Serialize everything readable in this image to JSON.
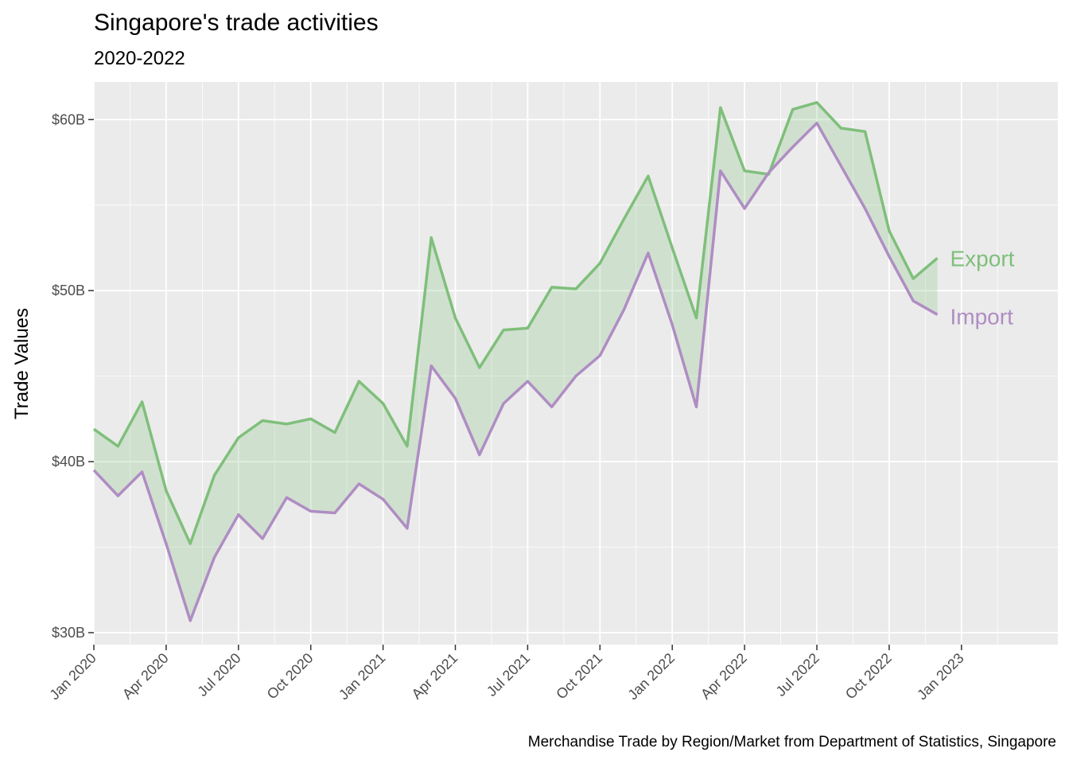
{
  "chart_data": {
    "type": "area",
    "title": "Singapore's trade activities",
    "subtitle": "2020-2022",
    "xlabel": "",
    "ylabel": "Trade Values",
    "caption": "Merchandise Trade by Region/Market from Department of Statistics, Singapore",
    "ylim": [
      "2019-12",
      "2023-01"
    ],
    "y_range": [
      29.3,
      62.2
    ],
    "yticks": [
      30,
      40,
      50,
      60
    ],
    "ytick_labels": [
      "$30B",
      "$40B",
      "$50B",
      "$60B"
    ],
    "xticks": [
      "2020-01",
      "2020-04",
      "2020-07",
      "2020-10",
      "2021-01",
      "2021-04",
      "2021-07",
      "2021-10",
      "2022-01",
      "2022-04",
      "2022-07",
      "2022-10",
      "2023-01"
    ],
    "xtick_labels": [
      "Jan 2020",
      "Apr 2020",
      "Jul 2020",
      "Oct 2020",
      "Jan 2021",
      "Apr 2021",
      "Jul 2021",
      "Oct 2021",
      "Jan 2022",
      "Apr 2022",
      "Jul 2022",
      "Oct 2022",
      "Jan 2023"
    ],
    "x_range": [
      "2020-01",
      "2023-05"
    ],
    "grid": true,
    "x": [
      "2020-01",
      "2020-02",
      "2020-03",
      "2020-04",
      "2020-05",
      "2020-06",
      "2020-07",
      "2020-08",
      "2020-09",
      "2020-10",
      "2020-11",
      "2020-12",
      "2021-01",
      "2021-02",
      "2021-03",
      "2021-04",
      "2021-05",
      "2021-06",
      "2021-07",
      "2021-08",
      "2021-09",
      "2021-10",
      "2021-11",
      "2021-12",
      "2022-01",
      "2022-02",
      "2022-03",
      "2022-04",
      "2022-05",
      "2022-06",
      "2022-07",
      "2022-08",
      "2022-09",
      "2022-10",
      "2022-11",
      "2022-12"
    ],
    "series": [
      {
        "name": "Export",
        "color": "#7fbf7b",
        "values": [
          41.9,
          40.9,
          43.5,
          38.3,
          35.2,
          39.2,
          41.4,
          42.4,
          42.2,
          42.5,
          41.7,
          44.7,
          43.4,
          40.9,
          53.1,
          48.4,
          45.5,
          47.7,
          47.8,
          50.2,
          50.1,
          51.6,
          54.2,
          56.7,
          52.5,
          48.4,
          60.7,
          57.0,
          56.8,
          60.6,
          61.0,
          59.5,
          59.3,
          53.5,
          50.7,
          51.9
        ]
      },
      {
        "name": "Import",
        "color": "#af8dc3",
        "values": [
          39.5,
          38.0,
          39.4,
          35.2,
          30.7,
          34.4,
          36.9,
          35.5,
          37.9,
          37.1,
          37.0,
          38.7,
          37.8,
          36.1,
          45.6,
          43.7,
          40.4,
          43.4,
          44.7,
          43.2,
          45.0,
          46.2,
          48.9,
          52.2,
          48.0,
          43.2,
          57.0,
          54.8,
          56.9,
          58.4,
          59.8,
          57.3,
          54.8,
          52.0,
          49.4,
          48.6
        ]
      }
    ],
    "fill_color": "#7fbf7b"
  }
}
